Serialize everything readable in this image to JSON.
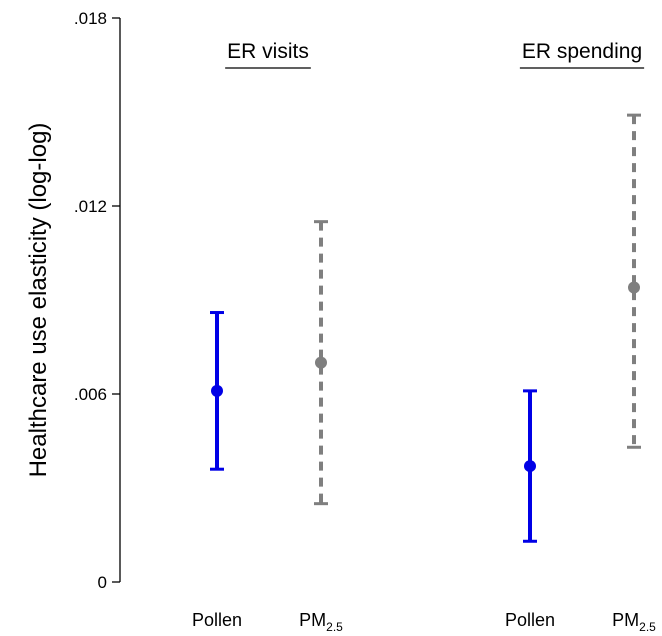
{
  "chart_data": {
    "type": "errorbar",
    "ylabel": "Healthcare use elasticity (log-log)",
    "ylim": [
      0,
      0.018
    ],
    "yticks": [
      {
        "value": 0,
        "label": "0"
      },
      {
        "value": 0.006,
        "label": ".006"
      },
      {
        "value": 0.012,
        "label": ".012"
      },
      {
        "value": 0.018,
        "label": ".018"
      }
    ],
    "grid": false,
    "panels": [
      {
        "title": "ER visits"
      },
      {
        "title": "ER spending"
      }
    ],
    "points": [
      {
        "panel": 0,
        "category": "Pollen",
        "category_sub": "",
        "estimate": 0.0061,
        "ci": [
          0.0036,
          0.0086
        ],
        "color": "#0000e6",
        "line": "solid"
      },
      {
        "panel": 0,
        "category": "PM",
        "category_sub": "2.5",
        "estimate": 0.007,
        "ci": [
          0.0025,
          0.0115
        ],
        "color": "#7f7f7f",
        "line": "dashed"
      },
      {
        "panel": 1,
        "category": "Pollen",
        "category_sub": "",
        "estimate": 0.0037,
        "ci": [
          0.0013,
          0.0061
        ],
        "color": "#0000e6",
        "line": "solid"
      },
      {
        "panel": 1,
        "category": "PM",
        "category_sub": "2.5",
        "estimate": 0.0094,
        "ci": [
          0.0043,
          0.0149
        ],
        "color": "#7f7f7f",
        "line": "dashed"
      }
    ]
  }
}
